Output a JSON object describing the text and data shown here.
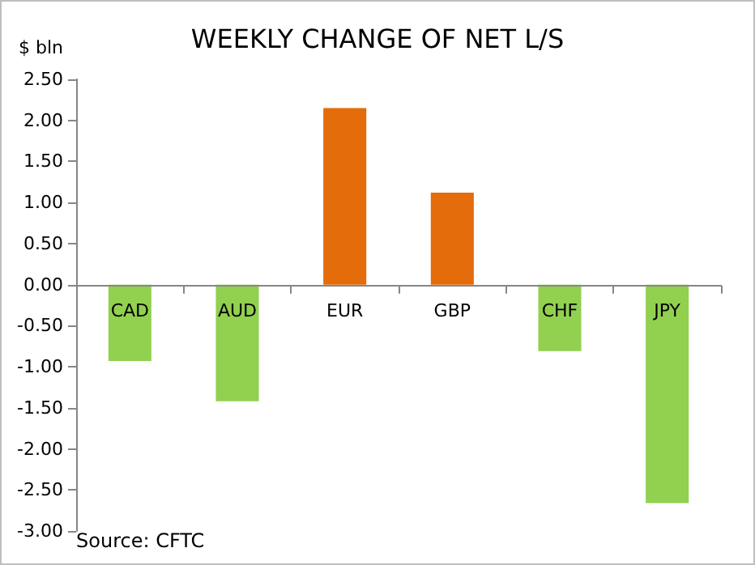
{
  "chart_data": {
    "type": "bar",
    "title": "WEEKLY CHANGE OF NET L/S",
    "ylabel": "$ bln",
    "annotations": [
      "Source: CFTC"
    ],
    "categories": [
      "CAD",
      "AUD",
      "EUR",
      "GBP",
      "CHF",
      "JPY"
    ],
    "values": [
      -0.93,
      -1.42,
      2.15,
      1.12,
      -0.81,
      -2.66
    ],
    "colors": [
      "#92d050",
      "#92d050",
      "#e46c0a",
      "#e46c0a",
      "#92d050",
      "#92d050"
    ],
    "ylim": [
      -3,
      2.5
    ],
    "yticks": [
      {
        "value": -3,
        "label": "-3.00"
      },
      {
        "value": -2.5,
        "label": "-2.50"
      },
      {
        "value": -2,
        "label": "-2.00"
      },
      {
        "value": -1.5,
        "label": "-1.50"
      },
      {
        "value": -1,
        "label": "-1.00"
      },
      {
        "value": -0.5,
        "label": "-0.50"
      },
      {
        "value": 0,
        "label": "0.00"
      },
      {
        "value": 0.5,
        "label": "0.50"
      },
      {
        "value": 1,
        "label": "1.00"
      },
      {
        "value": 1.5,
        "label": "1.50"
      },
      {
        "value": 2,
        "label": "2.00"
      },
      {
        "value": 2.5,
        "label": "2.50"
      }
    ],
    "tick_labels": "xy"
  }
}
